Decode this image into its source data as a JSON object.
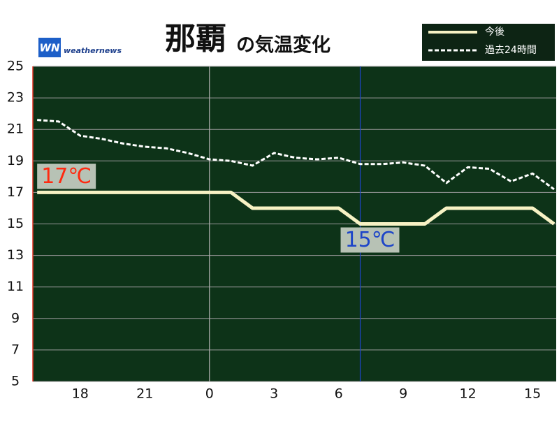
{
  "chart_data": {
    "type": "line",
    "title": "那覇",
    "title_suffix": "の気温変化",
    "logo": "WN",
    "brand": "weathernews",
    "x": [
      16,
      17,
      18,
      19,
      20,
      21,
      22,
      23,
      24,
      25,
      26,
      27,
      28,
      29,
      30,
      31,
      32,
      33,
      34,
      35,
      36,
      37,
      38,
      39,
      40
    ],
    "xlim": [
      15.8,
      40.1
    ],
    "xticks": [
      {
        "value": 18,
        "label": "18"
      },
      {
        "value": 21,
        "label": "21"
      },
      {
        "value": 24,
        "label": "0"
      },
      {
        "value": 27,
        "label": "3"
      },
      {
        "value": 30,
        "label": "6"
      },
      {
        "value": 33,
        "label": "9"
      },
      {
        "value": 36,
        "label": "12"
      },
      {
        "value": 39,
        "label": "15"
      }
    ],
    "ylim": [
      5,
      25
    ],
    "yticks": [
      5,
      7,
      9,
      11,
      13,
      15,
      17,
      19,
      21,
      23,
      25
    ],
    "grid": true,
    "vlines": [
      {
        "x": 24,
        "color": "#b0b0b0"
      },
      {
        "x": 31,
        "color": "#1d45c8"
      }
    ],
    "series": [
      {
        "name": "今後",
        "color": "#f7f2c4",
        "dash": false,
        "values": [
          17,
          17,
          17,
          17,
          17,
          17,
          17,
          17,
          17,
          17,
          16,
          16,
          16,
          16,
          16,
          15,
          15,
          15,
          15,
          16,
          16,
          16,
          16,
          16,
          15
        ]
      },
      {
        "name": "過去24時間",
        "color": "#ffffff",
        "dash": true,
        "values": [
          21.6,
          21.5,
          20.6,
          20.4,
          20.1,
          19.9,
          19.8,
          19.5,
          19.1,
          19.0,
          18.7,
          19.5,
          19.2,
          19.1,
          19.2,
          18.8,
          18.8,
          18.9,
          18.7,
          17.6,
          18.6,
          18.5,
          17.7,
          18.2,
          17.2
        ]
      }
    ],
    "annotations": [
      {
        "value": 17,
        "label": "17℃",
        "x": 16,
        "color": "#ff2a10",
        "position": "above"
      },
      {
        "value": 15,
        "label": "15℃",
        "x": 31,
        "color": "#1d45c8",
        "position": "below"
      }
    ],
    "legend": "top-right"
  }
}
